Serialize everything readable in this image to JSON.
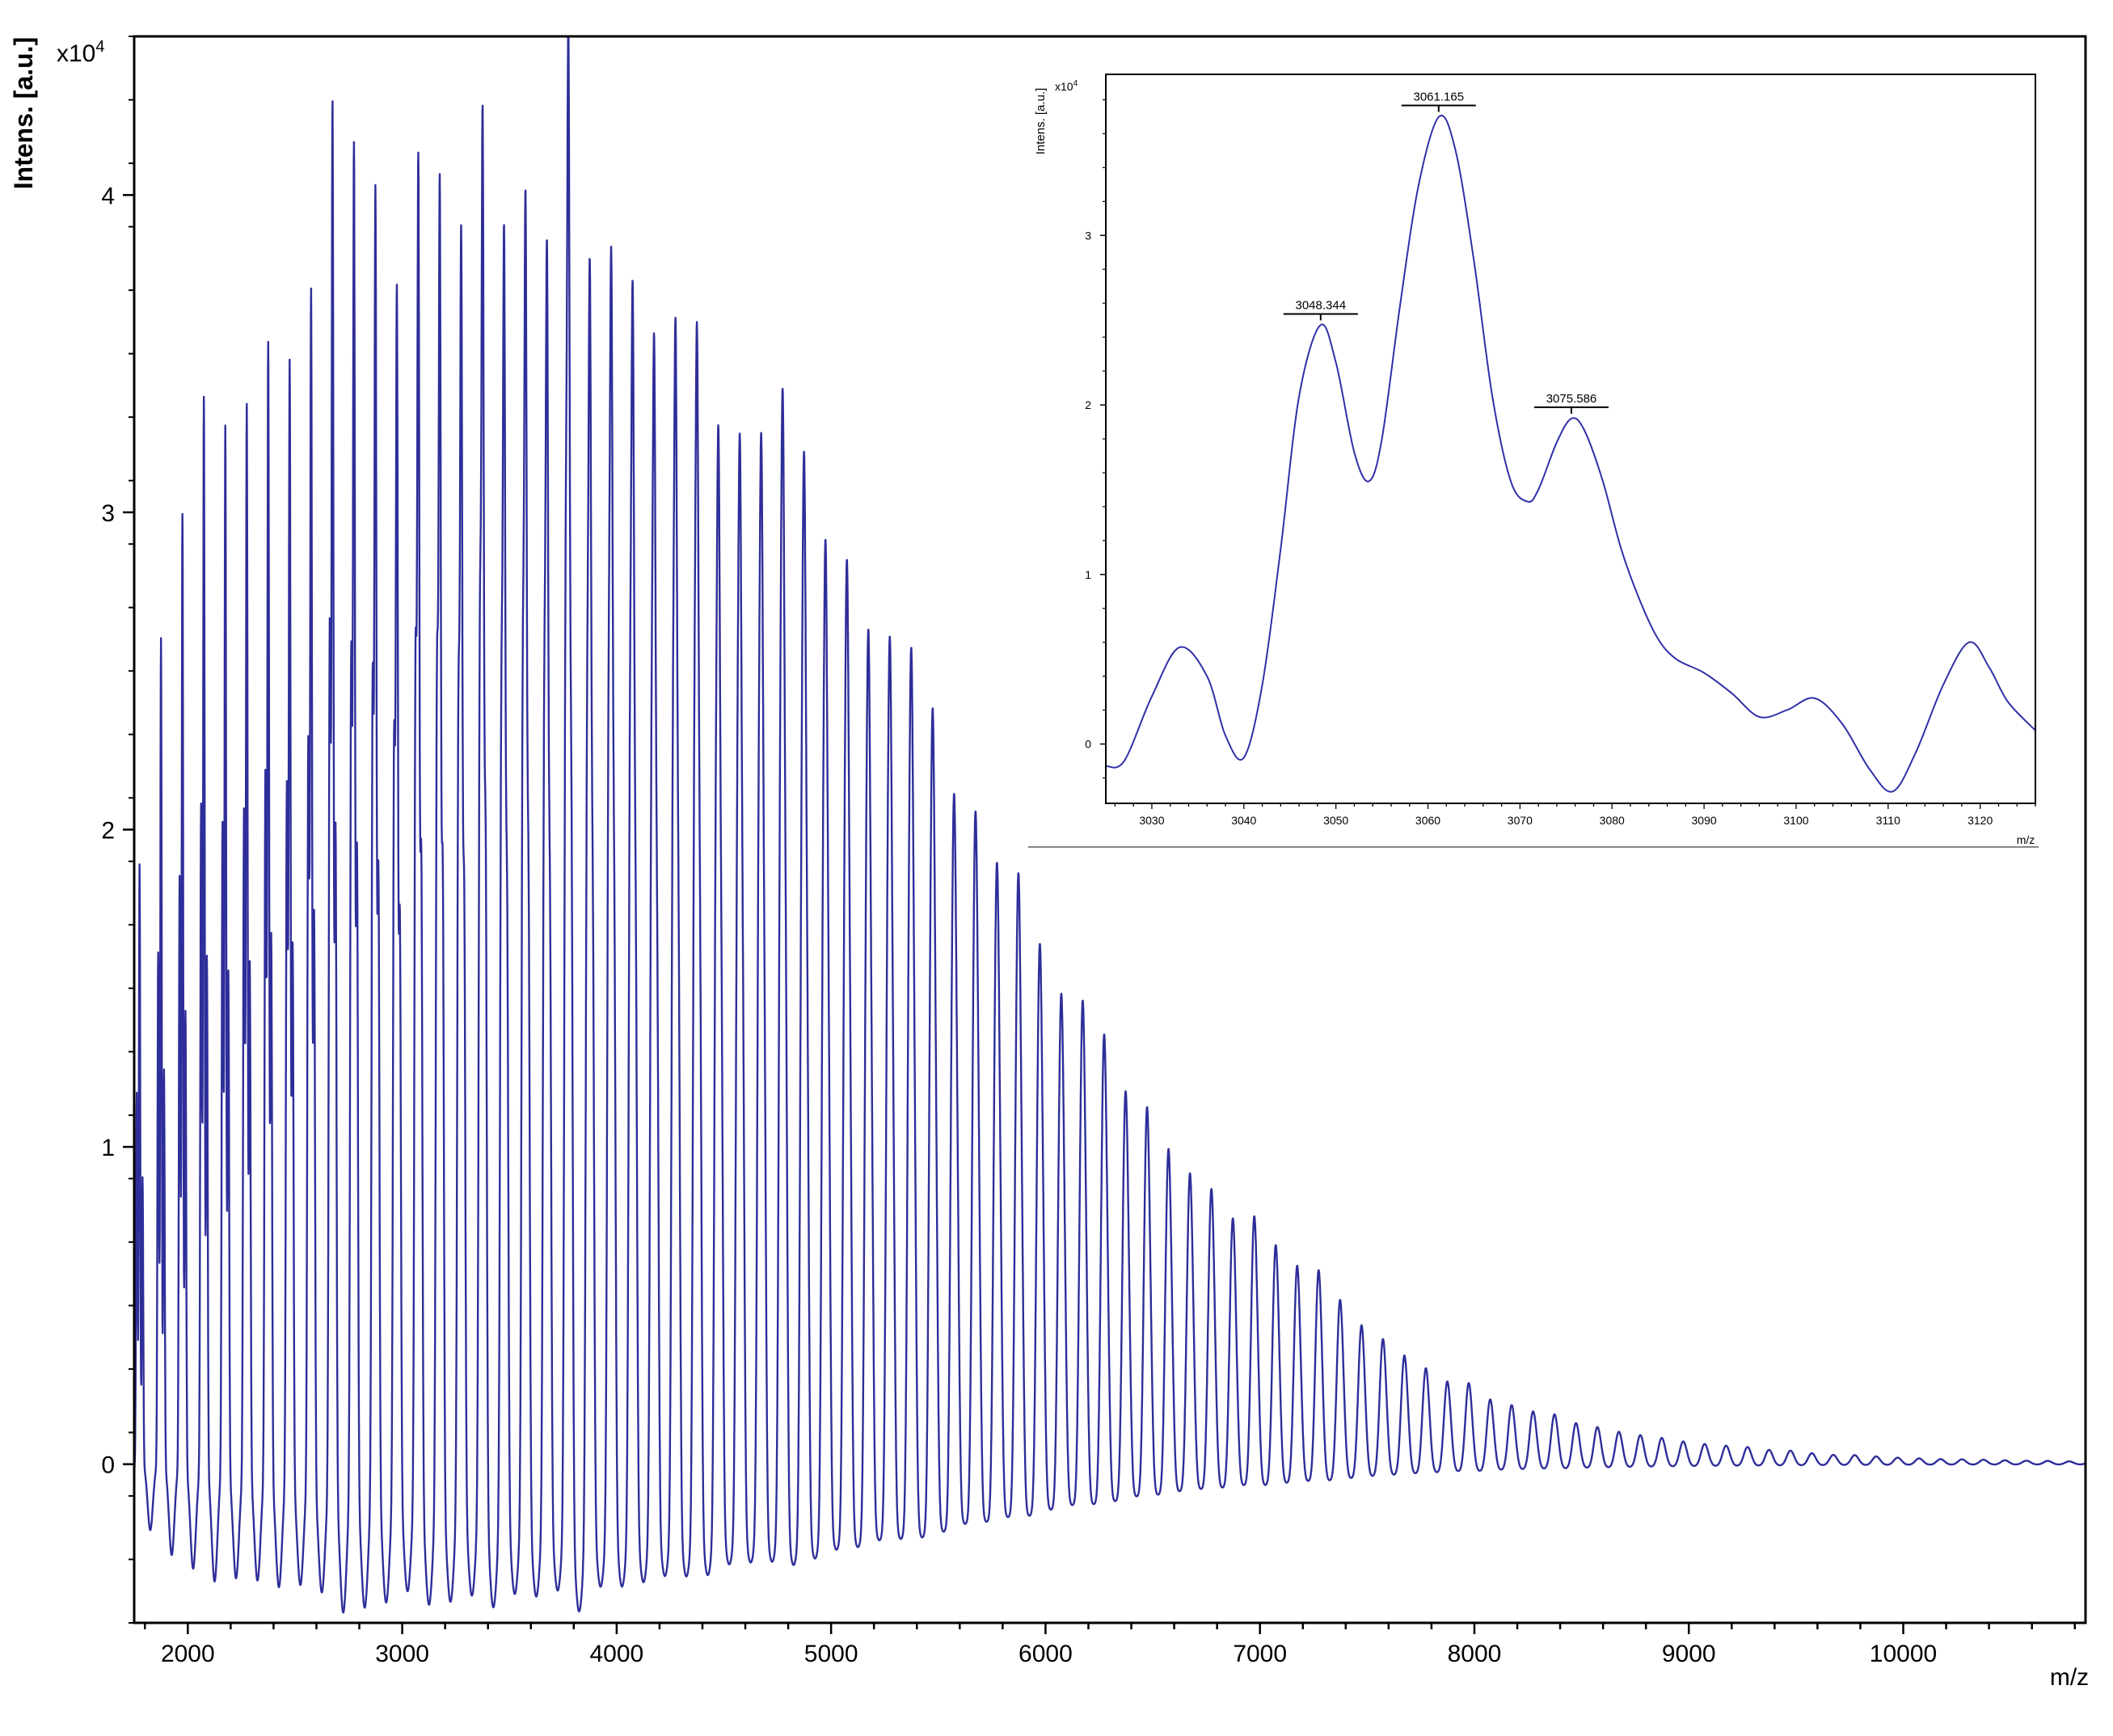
{
  "chart_data": [
    {
      "id": "main",
      "type": "line",
      "title": "",
      "xlabel": "m/z",
      "ylabel": "Intens. [a.u.]",
      "y_multiplier": "x10",
      "y_multiplier_exp": "4",
      "xlim": [
        1750,
        10850
      ],
      "ylim": [
        -0.5,
        4.5
      ],
      "x_ticks": [
        2000,
        3000,
        4000,
        5000,
        6000,
        7000,
        8000,
        9000,
        10000
      ],
      "x_tick_labels": [
        "2000",
        "3000",
        "4000",
        "5000",
        "6000",
        "7000",
        "8000",
        "9000",
        "10000"
      ],
      "y_ticks": [
        0,
        1,
        2,
        3,
        4
      ],
      "y_tick_labels": [
        "0",
        "1",
        "2",
        "3",
        "4"
      ],
      "grid": false,
      "color": "#2E2E9A",
      "series": [
        {
          "peak_spacing": 100,
          "first_peak_mz": 1775,
          "peak_envelope": {
            "mz": [
              1750,
              1800,
              1900,
              2000,
              2150,
              2300,
              2500,
              2700,
              2900,
              3100,
              3300,
              3500,
              3700,
              3900,
              4100,
              4300,
              4500,
              4700,
              4900,
              5100,
              5300,
              5500,
              5700,
              5900,
              6100,
              6300,
              6500,
              6700,
              6900,
              7100,
              7300,
              7500,
              7700,
              7900,
              8100,
              8300,
              8500,
              8700,
              8900,
              9100,
              9300,
              9500,
              9700,
              9900,
              10100,
              10300,
              10500,
              10850
            ],
            "height": [
              2.0,
              2.2,
              2.7,
              3.5,
              3.45,
              3.5,
              3.8,
              4.1,
              3.95,
              3.95,
              3.95,
              3.9,
              3.85,
              3.6,
              3.55,
              3.4,
              3.15,
              2.9,
              2.7,
              2.45,
              2.15,
              1.85,
              1.6,
              1.4,
              1.2,
              1.0,
              0.85,
              0.72,
              0.6,
              0.5,
              0.42,
              0.32,
              0.25,
              0.19,
              0.15,
              0.12,
              0.09,
              0.07,
              0.055,
              0.045,
              0.035,
              0.027,
              0.02,
              0.016,
              0.012,
              0.01,
              0.008,
              0.005
            ]
          },
          "notable_peaks": [
            {
              "mz": 2650,
              "intensity": 4.25
            },
            {
              "mz": 3750,
              "intensity": 4.22
            },
            {
              "mz": 3350,
              "intensity": 4.1
            }
          ]
        }
      ]
    },
    {
      "id": "inset",
      "type": "line",
      "title": "",
      "xlabel": "m/z",
      "ylabel": "Intens. [a.u.]",
      "y_multiplier": "x10",
      "y_multiplier_exp": "4",
      "xlim": [
        3025,
        3126
      ],
      "ylim": [
        -0.35,
        3.95
      ],
      "x_ticks": [
        3030,
        3040,
        3050,
        3060,
        3070,
        3080,
        3090,
        3100,
        3110,
        3120
      ],
      "x_tick_labels": [
        "3030",
        "3040",
        "3050",
        "3060",
        "3070",
        "3080",
        "3090",
        "3100",
        "3110",
        "3120"
      ],
      "y_ticks": [
        0,
        1,
        2,
        3
      ],
      "y_tick_labels": [
        "0",
        "1",
        "2",
        "3"
      ],
      "grid": false,
      "color": "#3030A8",
      "series": [
        {
          "x": [
            3025,
            3027,
            3030,
            3033,
            3036,
            3038,
            3040,
            3042,
            3044,
            3046,
            3048.3,
            3050,
            3052,
            3053.6,
            3055,
            3057,
            3059,
            3061.2,
            3063,
            3065,
            3067,
            3069,
            3070.8,
            3072,
            3074,
            3075.6,
            3077,
            3079,
            3081,
            3083,
            3085,
            3087,
            3090,
            3093,
            3096,
            3099,
            3102,
            3105,
            3108,
            3110.5,
            3113,
            3116,
            3118.8,
            3121,
            3123,
            3126
          ],
          "y": [
            -0.13,
            -0.1,
            0.28,
            0.57,
            0.4,
            0.05,
            -0.08,
            0.35,
            1.15,
            2.05,
            2.47,
            2.25,
            1.72,
            1.55,
            1.8,
            2.6,
            3.3,
            3.7,
            3.5,
            2.85,
            2.05,
            1.55,
            1.43,
            1.5,
            1.78,
            1.92,
            1.85,
            1.55,
            1.15,
            0.85,
            0.62,
            0.5,
            0.42,
            0.3,
            0.16,
            0.2,
            0.27,
            0.12,
            -0.15,
            -0.28,
            -0.05,
            0.35,
            0.6,
            0.45,
            0.25,
            0.08
          ]
        }
      ],
      "annotations": [
        {
          "label": "3048.344",
          "x": 3048.344,
          "y": 2.47
        },
        {
          "label": "3061.165",
          "x": 3061.165,
          "y": 3.7
        },
        {
          "label": "3075.586",
          "x": 3075.586,
          "y": 1.92
        }
      ]
    }
  ]
}
